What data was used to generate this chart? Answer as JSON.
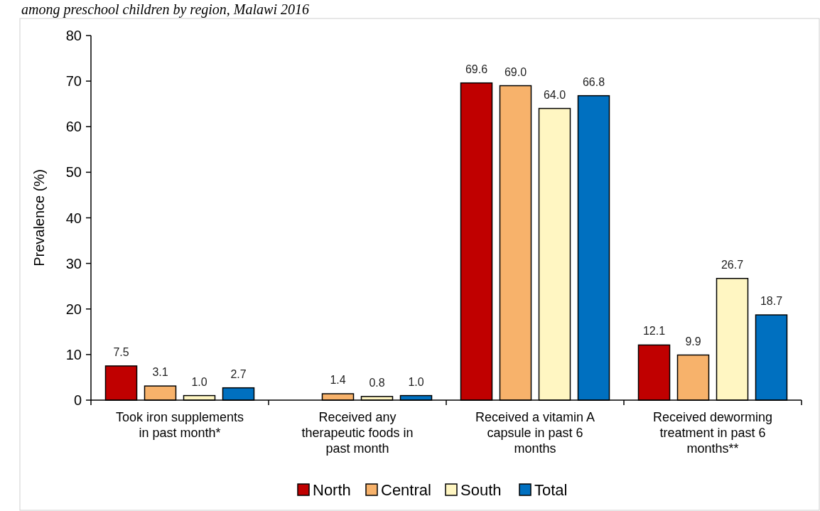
{
  "chart_data": {
    "type": "bar",
    "title": "among preschool children by region, Malawi 2016",
    "ylabel": "Prevalence (%)",
    "categories": [
      "Took iron supplements in past month*",
      "Received any therapeutic foods in past month",
      "Received a vitamin A capsule in past 6 months",
      "Received deworming treatment in past 6 months**"
    ],
    "series": [
      {
        "name": "North",
        "color": "#c00000",
        "values": [
          7.5,
          null,
          69.6,
          12.1
        ],
        "value_labels": [
          "7.5",
          null,
          "69.6",
          "12.1"
        ]
      },
      {
        "name": "Central",
        "color": "#f7b26b",
        "values": [
          3.1,
          1.4,
          69.0,
          9.9
        ],
        "value_labels": [
          "3.1",
          "1.4",
          "69.0",
          "9.9"
        ]
      },
      {
        "name": "South",
        "color": "#fff6c2",
        "values": [
          1.0,
          0.8,
          64.0,
          26.7
        ],
        "value_labels": [
          "1.0",
          "0.8",
          "64.0",
          "26.7"
        ]
      },
      {
        "name": "Total",
        "color": "#0070c0",
        "values": [
          2.7,
          1.0,
          66.8,
          18.7
        ],
        "value_labels": [
          "2.7",
          "1.0",
          "66.8",
          "18.7"
        ]
      }
    ],
    "ylim": [
      0,
      80
    ],
    "yticks": [
      0,
      10,
      20,
      30,
      40,
      50,
      60,
      70,
      80
    ],
    "legend": "bottom",
    "grid": false
  }
}
